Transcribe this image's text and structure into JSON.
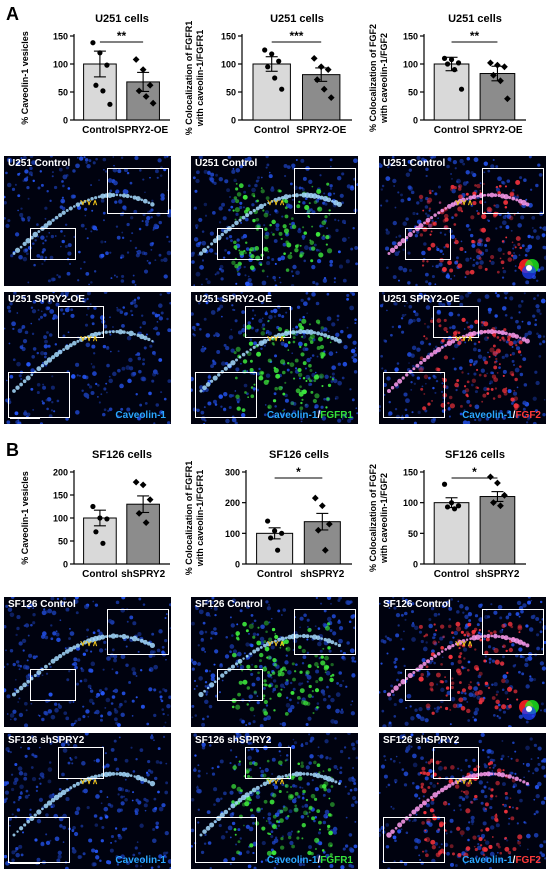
{
  "panels": {
    "A": {
      "letter": "A"
    },
    "B": {
      "letter": "B"
    }
  },
  "colors": {
    "control_bar": "#d9d9d9",
    "treated_bar": "#8c8c8c",
    "caveolin": "#2aa7ff",
    "fgfr1": "#35e23a",
    "fgf2": "#ff3a3a",
    "arrow_yellow": "#f0c419",
    "arrow_white": "#ffffff"
  },
  "chart_data": [
    {
      "type": "bar",
      "panel": "A",
      "title": "U251 cells",
      "ylabel_lines": [
        "% Caveolin-1 vesicles"
      ],
      "ylim": [
        0,
        150
      ],
      "yticks": [
        "0",
        "50",
        "100",
        "150"
      ],
      "yticks_num": [
        0,
        50,
        100,
        150
      ],
      "categories": [
        "Control",
        "SPRY2-OE"
      ],
      "values": [
        100,
        68
      ],
      "errors": [
        23,
        17
      ],
      "points": [
        [
          138,
          120,
          98,
          62,
          52,
          28
        ],
        [
          108,
          90,
          62,
          52,
          42,
          30
        ]
      ],
      "significance": "**"
    },
    {
      "type": "bar",
      "panel": "A",
      "title": "U251 cells",
      "ylabel_lines": [
        "% Colocalization of FGFR1",
        "with caveolin-1/FGFR1"
      ],
      "ylim": [
        0,
        150
      ],
      "yticks": [
        "0",
        "50",
        "100",
        "150"
      ],
      "yticks_num": [
        0,
        50,
        100,
        150
      ],
      "categories": [
        "Control",
        "SPRY2-OE"
      ],
      "values": [
        100,
        81
      ],
      "errors": [
        13,
        12
      ],
      "points": [
        [
          125,
          118,
          105,
          95,
          75,
          55
        ],
        [
          110,
          95,
          90,
          72,
          55,
          40
        ]
      ],
      "significance": "***"
    },
    {
      "type": "bar",
      "panel": "A",
      "title": "U251 cells",
      "ylabel_lines": [
        "% Colocalization of FGF2",
        "with caveolin-1/FGF2"
      ],
      "ylim": [
        0,
        150
      ],
      "yticks": [
        "0",
        "50",
        "100",
        "150"
      ],
      "yticks_num": [
        0,
        50,
        100,
        150
      ],
      "categories": [
        "Control",
        "SPRY2-OE"
      ],
      "values": [
        100,
        83
      ],
      "errors": [
        12,
        13
      ],
      "points": [
        [
          110,
          108,
          102,
          100,
          90,
          55
        ],
        [
          102,
          98,
          95,
          80,
          70,
          38
        ]
      ],
      "significance": "**"
    },
    {
      "type": "bar",
      "panel": "B",
      "title": "SF126 cells",
      "ylabel_lines": [
        "% Caveolin-1 vesicles"
      ],
      "ylim": [
        0,
        200
      ],
      "yticks": [
        "0",
        "50",
        "100",
        "150",
        "200"
      ],
      "yticks_num": [
        0,
        50,
        100,
        150,
        200
      ],
      "categories": [
        "Control",
        "shSPRY2"
      ],
      "values": [
        100,
        130
      ],
      "errors": [
        17,
        18
      ],
      "points": [
        [
          125,
          100,
          98,
          70,
          45
        ],
        [
          178,
          172,
          140,
          110,
          90
        ]
      ],
      "significance": ""
    },
    {
      "type": "bar",
      "panel": "B",
      "title": "SF126 cells",
      "ylabel_lines": [
        "% Colocalization of FGFR1",
        "with caveolin-1/FGFR1"
      ],
      "ylim": [
        0,
        300
      ],
      "yticks": [
        "0",
        "100",
        "200",
        "300"
      ],
      "yticks_num": [
        0,
        100,
        200,
        300
      ],
      "categories": [
        "Control",
        "shSPRY2"
      ],
      "values": [
        100,
        138
      ],
      "errors": [
        18,
        27
      ],
      "points": [
        [
          140,
          108,
          100,
          85,
          45
        ],
        [
          215,
          190,
          130,
          110,
          45
        ]
      ],
      "significance": "*"
    },
    {
      "type": "bar",
      "panel": "B",
      "title": "SF126 cells",
      "ylabel_lines": [
        "% Colocalization of FGF2",
        "with caveolin-1/FGF2"
      ],
      "ylim": [
        0,
        150
      ],
      "yticks": [
        "0",
        "50",
        "100",
        "150"
      ],
      "yticks_num": [
        0,
        50,
        100,
        150
      ],
      "categories": [
        "Control",
        "shSPRY2"
      ],
      "values": [
        100,
        110
      ],
      "errors": [
        8,
        8
      ],
      "points": [
        [
          130,
          100,
          95,
          93,
          90
        ],
        [
          142,
          132,
          112,
          100,
          95
        ]
      ],
      "significance": "*"
    }
  ],
  "micrographs": {
    "A": [
      {
        "label": "U251 Control",
        "channel": [],
        "mode": "blue",
        "rgb": false
      },
      {
        "label": "U251 Control",
        "channel": [],
        "mode": "green",
        "rgb": false
      },
      {
        "label": "U251 Control",
        "channel": [],
        "mode": "red",
        "rgb": true
      },
      {
        "label": "U251 SPRY2-OE",
        "channel": [
          "Caveolin-1"
        ],
        "mode": "blue",
        "rgb": false,
        "scale": true
      },
      {
        "label": "U251 SPRY2-OE",
        "channel": [
          "Caveolin-1",
          "/",
          "FGFR1"
        ],
        "mode": "green",
        "rgb": false
      },
      {
        "label": "U251 SPRY2-OE",
        "channel": [
          "Caveolin-1",
          "/",
          "FGF2"
        ],
        "mode": "red",
        "rgb": false
      }
    ],
    "B": [
      {
        "label": "SF126 Control",
        "channel": [],
        "mode": "blue",
        "rgb": false
      },
      {
        "label": "SF126 Control",
        "channel": [],
        "mode": "green",
        "rgb": false
      },
      {
        "label": "SF126 Control",
        "channel": [],
        "mode": "red",
        "rgb": true
      },
      {
        "label": "SF126 shSPRY2",
        "channel": [
          "Caveolin-1"
        ],
        "mode": "blue",
        "rgb": false,
        "scale": true
      },
      {
        "label": "SF126 shSPRY2",
        "channel": [
          "Caveolin-1",
          "/",
          "FGFR1"
        ],
        "mode": "green",
        "rgb": false
      },
      {
        "label": "SF126 shSPRY2",
        "channel": [
          "Caveolin-1",
          "/",
          "FGF2"
        ],
        "mode": "red",
        "rgb": false
      }
    ]
  }
}
